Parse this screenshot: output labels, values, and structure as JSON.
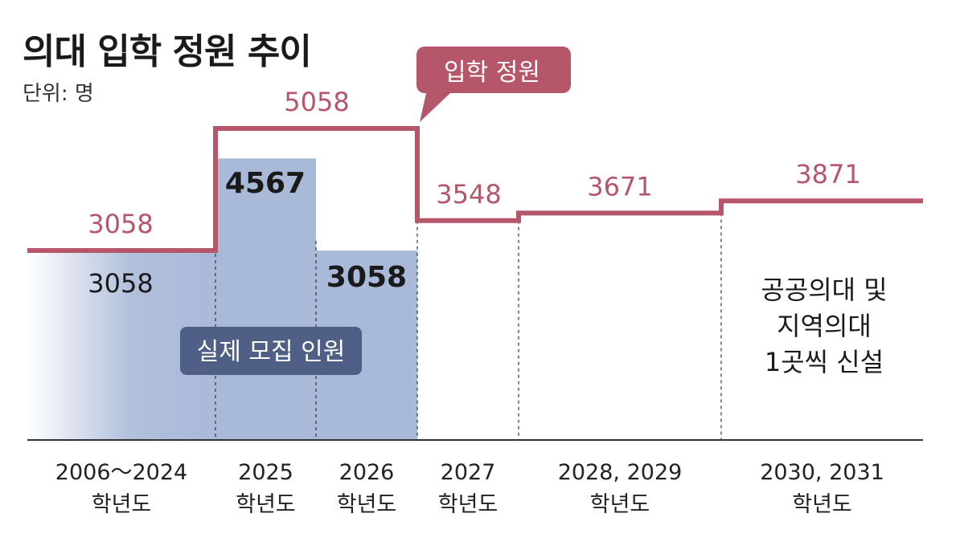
{
  "title": "의대 입학 정원 추이",
  "unit": "단위: 명",
  "chart_data": {
    "type": "bar",
    "categories": [
      {
        "line1": "2006～2024",
        "line2": "학년도"
      },
      {
        "line1": "2025",
        "line2": "학년도"
      },
      {
        "line1": "2026",
        "line2": "학년도"
      },
      {
        "line1": "2027",
        "line2": "학년도"
      },
      {
        "line1": "2028, 2029",
        "line2": "학년도"
      },
      {
        "line1": "2030, 2031",
        "line2": "학년도"
      }
    ],
    "series": [
      {
        "name": "입학 정원",
        "kind": "step-line",
        "values": [
          3058,
          5058,
          5058,
          3548,
          3671,
          3871
        ]
      },
      {
        "name": "실제 모집 인원",
        "kind": "bar",
        "values": [
          3058,
          4567,
          3058,
          null,
          null,
          null
        ]
      }
    ],
    "value_labels": {
      "quota": [
        "3058",
        "5058",
        "3548",
        "3671",
        "3871"
      ],
      "actual": [
        "3058",
        "4567",
        "3058"
      ]
    },
    "annotation": {
      "line1": "공공의대 및",
      "line2": "지역의대",
      "line3": "1곳씩 신설"
    },
    "ylim": [
      0,
      5200
    ],
    "colors": {
      "quota": "#b5566a",
      "actual_bar": "#a9b9d8",
      "label_box_quota": "#b5566a",
      "label_box_actual": "#4f5f85",
      "axis": "#333333"
    }
  }
}
